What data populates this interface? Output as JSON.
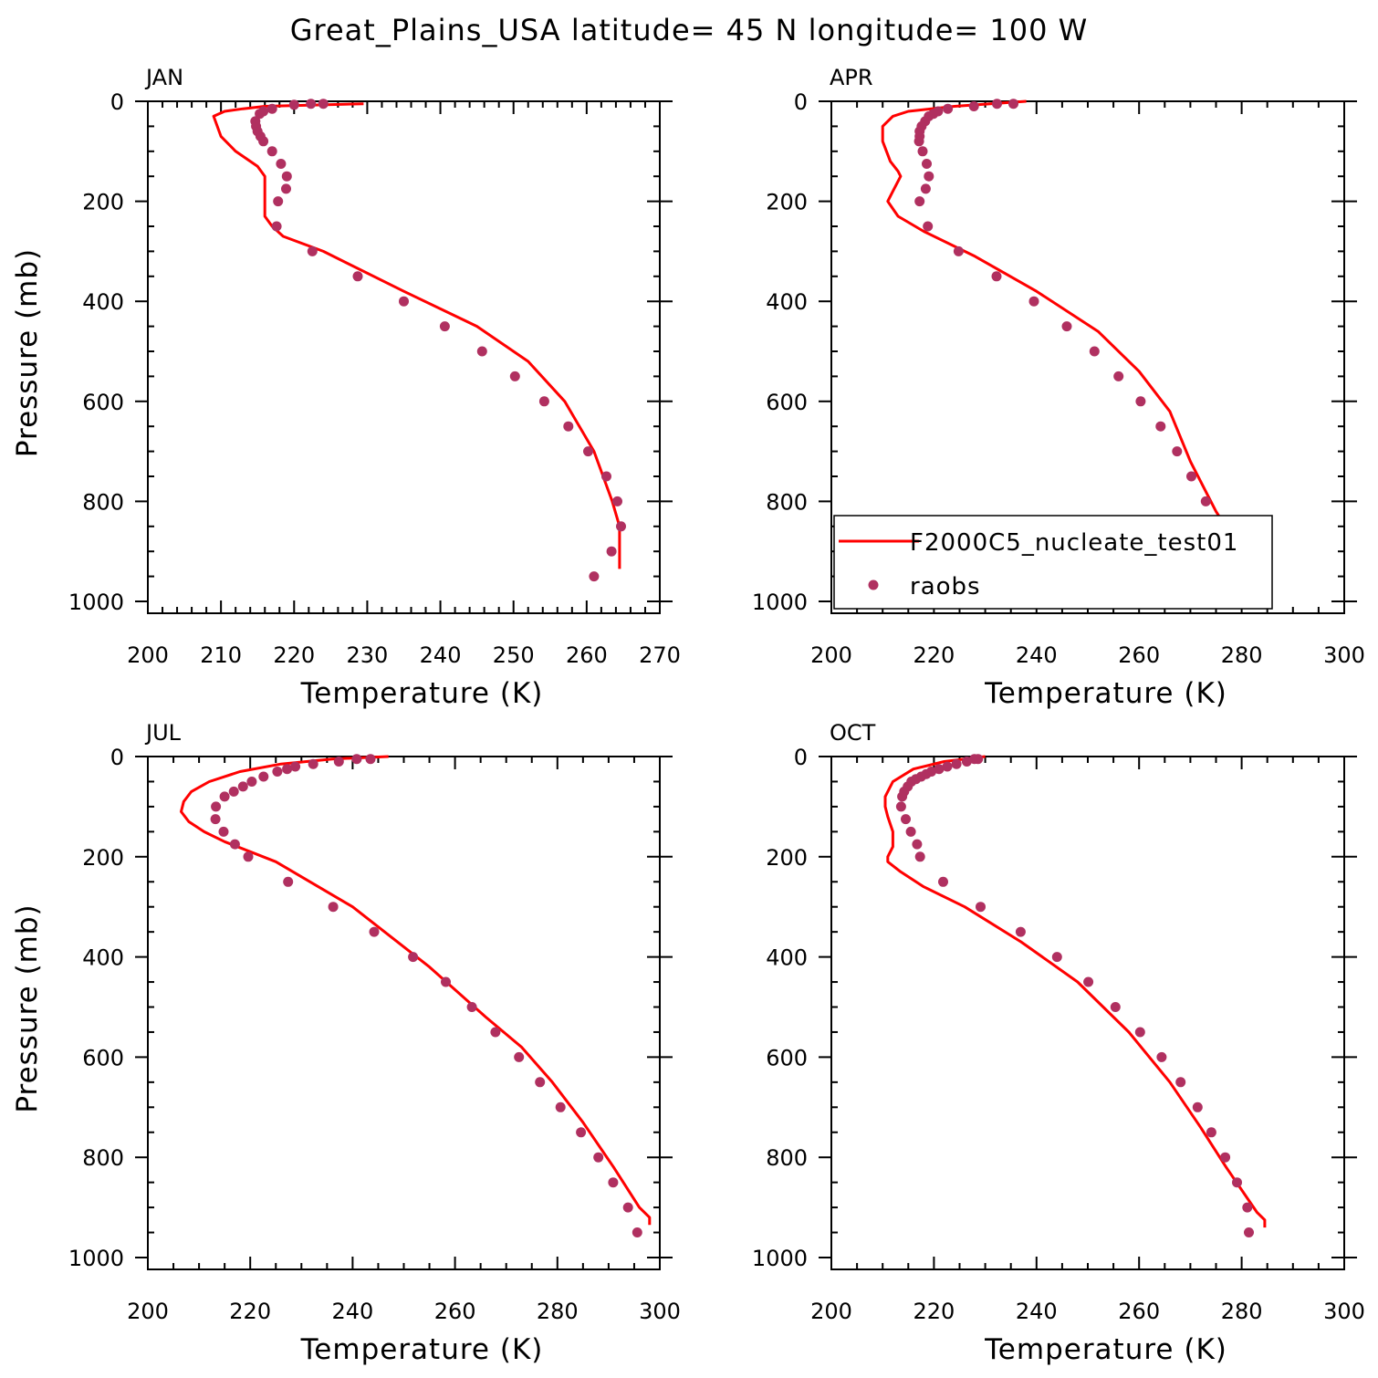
{
  "figure": {
    "title": "Great_Plains_USA  latitude= 45 N longitude= 100 W"
  },
  "colors": {
    "model_line": "#ff0000",
    "obs_points": "#b03060",
    "axis": "#000000",
    "background": "#ffffff"
  },
  "legend": {
    "model_label": "F2000C5_nucleate_test01",
    "obs_label": "raobs",
    "panel": "APR",
    "placement": "lower-left"
  },
  "chart_data": [
    {
      "type": "line",
      "panel_label": "JAN",
      "xlabel": "Temperature (K)",
      "ylabel": "Pressure (mb)",
      "xlim": [
        200,
        270
      ],
      "ylim": [
        1000,
        0
      ],
      "y_inverted": true,
      "xticks": [
        "200",
        "210",
        "220",
        "230",
        "240",
        "250",
        "260",
        "270"
      ],
      "yticks": [
        "0",
        "200",
        "400",
        "600",
        "800",
        "1000"
      ],
      "series": [
        {
          "name": "F2000C5_nucleate_test01",
          "style": "line",
          "x": [
            229.5,
            216,
            213,
            210.5,
            209,
            209.5,
            210,
            212,
            215,
            216,
            216,
            216,
            216,
            217,
            218.5,
            224,
            235,
            245,
            252,
            257,
            261,
            263.5,
            264.5,
            264.5,
            264.5
          ],
          "y": [
            5,
            10,
            15,
            20,
            30,
            50,
            70,
            100,
            130,
            150,
            175,
            200,
            230,
            250,
            270,
            300,
            380,
            450,
            520,
            600,
            700,
            800,
            850,
            900,
            935
          ]
        },
        {
          "name": "raobs",
          "style": "points",
          "x": [
            224,
            222.3,
            220,
            217,
            215.8,
            215.3,
            214.7,
            214.8,
            215,
            215.4,
            215.8,
            217,
            218.2,
            219,
            218.9,
            217.8,
            217.6,
            222.5,
            228.7,
            235,
            240.6,
            245.7,
            250.2,
            254.2,
            257.5,
            260.2,
            262.7,
            264.2,
            264.7,
            263.4,
            261
          ],
          "y": [
            5,
            5,
            7,
            15,
            20,
            25,
            40,
            50,
            60,
            70,
            80,
            100,
            125,
            150,
            175,
            200,
            250,
            300,
            350,
            400,
            450,
            500,
            550,
            600,
            650,
            700,
            750,
            800,
            850,
            900,
            950
          ]
        }
      ]
    },
    {
      "type": "line",
      "panel_label": "APR",
      "xlabel": "Temperature (K)",
      "ylabel": "",
      "xlim": [
        200,
        300
      ],
      "ylim": [
        1000,
        0
      ],
      "y_inverted": true,
      "xticks": [
        "200",
        "220",
        "240",
        "260",
        "280",
        "300"
      ],
      "yticks": [
        "0",
        "200",
        "400",
        "600",
        "800",
        "1000"
      ],
      "series": [
        {
          "name": "F2000C5_nucleate_test01",
          "style": "line",
          "x": [
            238,
            224,
            215,
            212,
            210,
            210,
            211.5,
            213,
            213.5,
            212,
            211,
            213,
            218,
            228,
            240,
            252,
            260,
            266,
            270,
            275,
            280,
            284
          ],
          "y": [
            0,
            10,
            20,
            30,
            50,
            80,
            120,
            140,
            150,
            180,
            200,
            230,
            260,
            310,
            380,
            460,
            540,
            620,
            720,
            820,
            900,
            930
          ]
        },
        {
          "name": "raobs",
          "style": "points",
          "x": [
            235.5,
            232.3,
            227.8,
            222.7,
            220.8,
            219.9,
            219,
            218.3,
            217.6,
            217.2,
            217.2,
            217.1,
            217.8,
            218.6,
            219,
            218.4,
            217.2,
            218.8,
            224.8,
            232.2,
            239.5,
            245.9,
            251.3,
            256,
            260.3,
            264.2,
            267.4,
            270.2,
            273,
            275.3,
            277.7,
            279.4
          ],
          "y": [
            5,
            5,
            10,
            15,
            20,
            25,
            30,
            40,
            50,
            60,
            70,
            80,
            100,
            125,
            150,
            175,
            200,
            250,
            300,
            350,
            400,
            450,
            500,
            550,
            600,
            650,
            700,
            750,
            800,
            850,
            900,
            950
          ]
        }
      ]
    },
    {
      "type": "line",
      "panel_label": "JUL",
      "xlabel": "Temperature (K)",
      "ylabel": "Pressure (mb)",
      "xlim": [
        200,
        300
      ],
      "ylim": [
        1000,
        0
      ],
      "y_inverted": true,
      "xticks": [
        "200",
        "220",
        "240",
        "260",
        "280",
        "300"
      ],
      "yticks": [
        "0",
        "200",
        "400",
        "600",
        "800",
        "1000"
      ],
      "series": [
        {
          "name": "F2000C5_nucleate_test01",
          "style": "line",
          "x": [
            247,
            236,
            226,
            218,
            212,
            208.5,
            207,
            206.5,
            208,
            211,
            215,
            225,
            240,
            255,
            266,
            273,
            279,
            285,
            291,
            296,
            298,
            298
          ],
          "y": [
            0,
            5,
            15,
            30,
            50,
            70,
            90,
            110,
            130,
            150,
            170,
            210,
            300,
            420,
            520,
            580,
            650,
            730,
            820,
            900,
            920,
            935
          ]
        },
        {
          "name": "raobs",
          "style": "points",
          "x": [
            243.5,
            240.8,
            237.3,
            232.3,
            228.8,
            227.2,
            225.3,
            222.6,
            220.3,
            218.6,
            216.8,
            215,
            213.3,
            213.2,
            214.8,
            217,
            219.6,
            227.4,
            236.2,
            244.2,
            251.8,
            258.2,
            263.3,
            267.9,
            272.5,
            276.6,
            280.6,
            284.6,
            288,
            290.9,
            293.8,
            295.6
          ],
          "y": [
            5,
            5,
            10,
            15,
            20,
            25,
            30,
            40,
            50,
            60,
            70,
            80,
            100,
            125,
            150,
            175,
            200,
            250,
            300,
            350,
            400,
            450,
            500,
            550,
            600,
            650,
            700,
            750,
            800,
            850,
            900,
            950
          ]
        }
      ]
    },
    {
      "type": "line",
      "panel_label": "OCT",
      "xlabel": "Temperature (K)",
      "ylabel": "",
      "xlim": [
        200,
        300
      ],
      "ylim": [
        1000,
        0
      ],
      "y_inverted": true,
      "xticks": [
        "200",
        "220",
        "240",
        "260",
        "280",
        "300"
      ],
      "yticks": [
        "0",
        "200",
        "400",
        "600",
        "800",
        "1000"
      ],
      "series": [
        {
          "name": "F2000C5_nucleate_test01",
          "style": "line",
          "x": [
            230,
            222,
            216,
            212,
            210.5,
            210.5,
            211,
            212,
            212,
            211,
            211,
            213.5,
            218,
            226,
            237,
            248,
            258,
            266,
            272,
            277,
            281,
            283,
            284.5,
            284.5
          ],
          "y": [
            0,
            10,
            25,
            50,
            80,
            100,
            120,
            150,
            180,
            200,
            210,
            230,
            260,
            300,
            370,
            450,
            550,
            650,
            740,
            820,
            880,
            910,
            925,
            940
          ]
        },
        {
          "name": "raobs",
          "style": "points",
          "x": [
            228.6,
            227.9,
            226.4,
            224.4,
            222.6,
            221,
            219.5,
            218.5,
            217.5,
            216.5,
            215.6,
            214.9,
            214.2,
            213.8,
            213.6,
            214.5,
            215.5,
            216.7,
            217.3,
            221.8,
            229.1,
            236.9,
            244,
            250.1,
            255.4,
            260.2,
            264.4,
            268.1,
            271.4,
            274.1,
            276.8,
            279.1,
            281.1,
            281.4
          ],
          "y": [
            5,
            5,
            10,
            15,
            20,
            25,
            30,
            35,
            40,
            45,
            50,
            60,
            70,
            80,
            100,
            125,
            150,
            175,
            200,
            250,
            300,
            350,
            400,
            450,
            500,
            550,
            600,
            650,
            700,
            750,
            800,
            850,
            900,
            950
          ]
        }
      ]
    }
  ]
}
